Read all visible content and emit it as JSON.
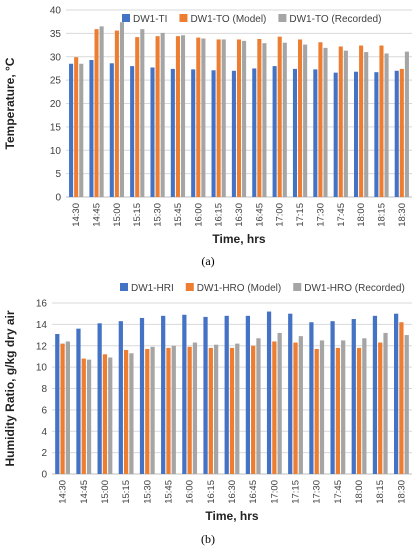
{
  "chart_data": [
    {
      "type": "bar",
      "panel_label": "(a)",
      "title": "",
      "xlabel": "Time, hrs",
      "ylabel": "Temperature, °C",
      "ylim": [
        0,
        40
      ],
      "ytick_step": 5,
      "grid": true,
      "legend_position": "top",
      "categories": [
        "14:30",
        "14:45",
        "15:00",
        "15:15",
        "15:30",
        "15:45",
        "16:00",
        "16:15",
        "16:30",
        "16:45",
        "17:00",
        "17:15",
        "17:30",
        "17:45",
        "18:00",
        "18:15",
        "18:30"
      ],
      "series": [
        {
          "name": "DW1-TI",
          "color": "#4472C4",
          "values": [
            28.5,
            29.3,
            28.6,
            28.0,
            27.7,
            27.4,
            27.3,
            27.1,
            27.0,
            27.5,
            28.0,
            27.4,
            27.3,
            26.6,
            26.8,
            26.7,
            27.0
          ]
        },
        {
          "name": "DW1-TO (Model)",
          "color": "#ED7D31",
          "values": [
            29.9,
            35.9,
            35.6,
            34.2,
            34.4,
            34.4,
            34.1,
            33.7,
            33.7,
            33.8,
            34.3,
            33.7,
            33.1,
            32.2,
            32.4,
            32.4,
            27.4
          ]
        },
        {
          "name": "DW1-TO (Recorded)",
          "color": "#A5A5A5",
          "values": [
            28.5,
            36.5,
            37.4,
            35.9,
            35.1,
            34.6,
            33.9,
            33.7,
            33.4,
            32.9,
            33.0,
            32.6,
            31.9,
            31.3,
            31.0,
            30.7,
            31.1
          ]
        }
      ]
    },
    {
      "type": "bar",
      "panel_label": "(b)",
      "title": "",
      "xlabel": "Time, hrs",
      "ylabel": "Humidity Ratio, g/kg dry air",
      "ylim": [
        0,
        16
      ],
      "ytick_step": 2,
      "grid": true,
      "legend_position": "top",
      "categories": [
        "14:30",
        "14:45",
        "15:00",
        "15:15",
        "15:30",
        "15:45",
        "16:00",
        "16:15",
        "16:30",
        "16:45",
        "17:00",
        "17:15",
        "17:30",
        "17:45",
        "18:00",
        "18:15",
        "18:30"
      ],
      "series": [
        {
          "name": "DW1-HRI",
          "color": "#4472C4",
          "values": [
            13.1,
            13.6,
            14.1,
            14.3,
            14.6,
            14.8,
            14.9,
            14.7,
            14.8,
            14.8,
            15.2,
            15.0,
            14.2,
            14.3,
            14.5,
            14.8,
            15.0
          ]
        },
        {
          "name": "DW1-HRO (Model)",
          "color": "#ED7D31",
          "values": [
            12.2,
            10.8,
            11.2,
            11.6,
            11.7,
            11.8,
            11.9,
            11.8,
            11.8,
            12.0,
            12.4,
            12.3,
            11.7,
            11.8,
            11.8,
            12.3,
            14.2
          ]
        },
        {
          "name": "DW1-HRO (Recorded)",
          "color": "#A5A5A5",
          "values": [
            12.4,
            10.7,
            10.9,
            11.3,
            11.9,
            12.0,
            12.3,
            12.1,
            12.2,
            12.7,
            13.2,
            12.9,
            12.5,
            12.5,
            12.7,
            13.2,
            13.0
          ]
        }
      ]
    }
  ]
}
